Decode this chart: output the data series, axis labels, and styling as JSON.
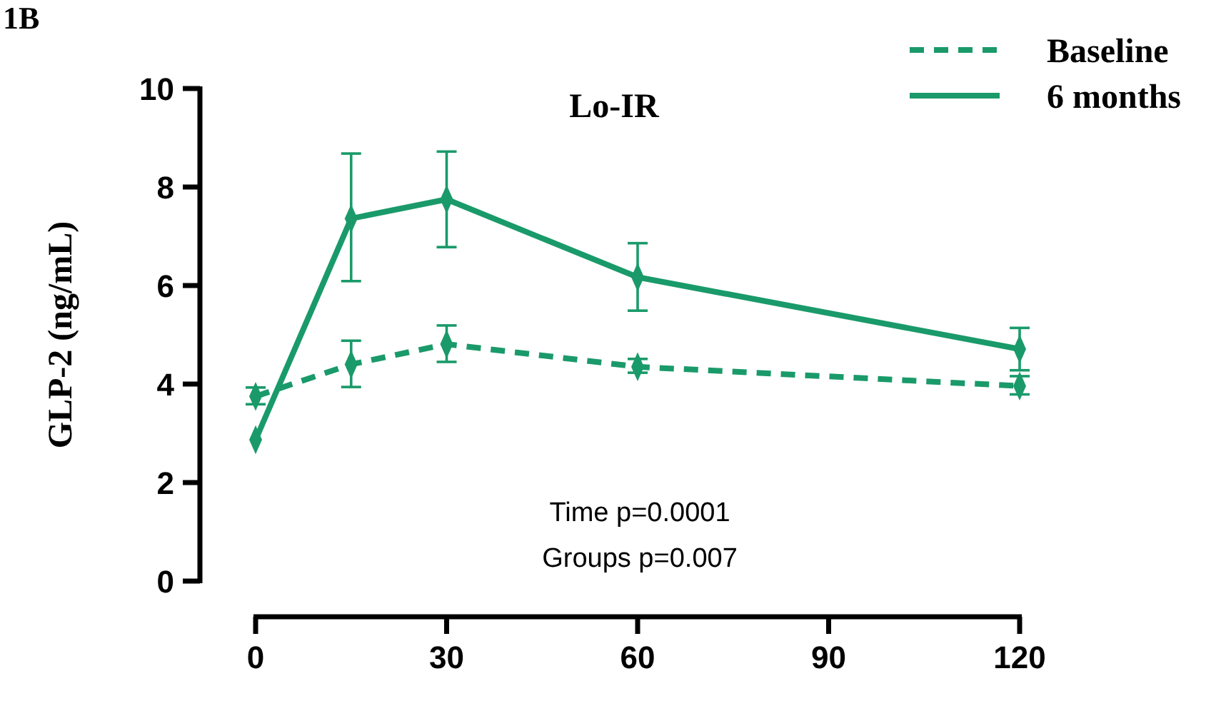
{
  "chart_data": {
    "type": "line",
    "title": "Lo-IR",
    "ylabel": "GLP-2 (ng/mL)",
    "x": [
      0,
      15,
      30,
      60,
      120
    ],
    "xlim": [
      0,
      120
    ],
    "xticks": [
      0,
      30,
      60,
      90,
      120
    ],
    "ylim": [
      0,
      10
    ],
    "yticks": [
      0,
      2,
      4,
      6,
      8,
      10
    ],
    "marker": "diamond",
    "legend": "top right",
    "grid": false,
    "annotations": [
      "1B",
      "Time p=0.0001",
      "Groups p=0.007"
    ],
    "series": [
      {
        "name": "Baseline",
        "color": "#1a9a6a",
        "line_style": "dashed",
        "values": [
          3.75,
          4.4,
          4.81,
          4.35,
          3.96
        ],
        "errors": [
          [
            3.59,
            3.93
          ],
          [
            3.94,
            4.88
          ],
          [
            4.45,
            5.19
          ],
          [
            4.23,
            4.51
          ],
          [
            3.79,
            4.16
          ]
        ]
      },
      {
        "name": "6 months",
        "color": "#1a9a6a",
        "line_style": "solid",
        "values": [
          2.87,
          7.36,
          7.75,
          6.17,
          4.71
        ],
        "errors": [
          null,
          [
            6.09,
            8.68
          ],
          [
            6.78,
            8.72
          ],
          [
            5.49,
            6.86
          ],
          [
            4.28,
            5.14
          ]
        ]
      }
    ]
  }
}
